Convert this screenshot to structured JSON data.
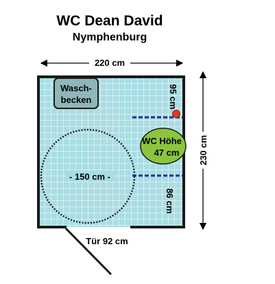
{
  "title": "WC Dean  David",
  "subtitle": "Nymphenburg",
  "dimensions": {
    "width": "220 cm",
    "height": "230 cm",
    "wall_top_segment": "95 cm",
    "wall_bottom_segment": "86 cm",
    "turning_circle": "- 150 cm -",
    "door": "Tür 92 cm"
  },
  "fixtures": {
    "sink": {
      "line1": "Wasch-",
      "line2": "becken"
    },
    "toilet": {
      "line1": "WC Höhe",
      "line2": "47 cm"
    }
  },
  "colors": {
    "floor_tile": "#a9dde4",
    "grid_line": "#ffffff",
    "wall": "#1a1a1a",
    "sink_fill": "#8fb6b9",
    "toilet_fill": "#8bc53f",
    "grab_bar": "#1f2f8c",
    "flush_button": "#e03a1e",
    "circle": "#1a1a1a"
  }
}
